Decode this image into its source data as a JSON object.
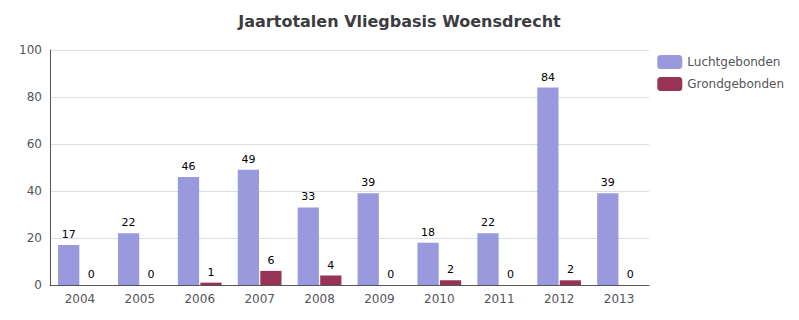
{
  "chart_data": {
    "type": "bar",
    "title": "Jaartotalen Vliegbasis Woensdrecht",
    "categories": [
      "2004",
      "2005",
      "2006",
      "2007",
      "2008",
      "2009",
      "2010",
      "2011",
      "2012",
      "2013"
    ],
    "series": [
      {
        "name": "Luchtgebonden",
        "color": "#9999dd",
        "values": [
          17,
          22,
          46,
          49,
          33,
          39,
          18,
          22,
          84,
          39
        ]
      },
      {
        "name": "Grondgebonden",
        "color": "#993355",
        "values": [
          0,
          0,
          1,
          6,
          4,
          0,
          2,
          0,
          2,
          0
        ]
      }
    ],
    "ylim": [
      0,
      100
    ],
    "yticks": [
      0,
      20,
      40,
      60,
      80,
      100
    ],
    "grid": true,
    "legend": "upper right",
    "data_labels": true
  }
}
